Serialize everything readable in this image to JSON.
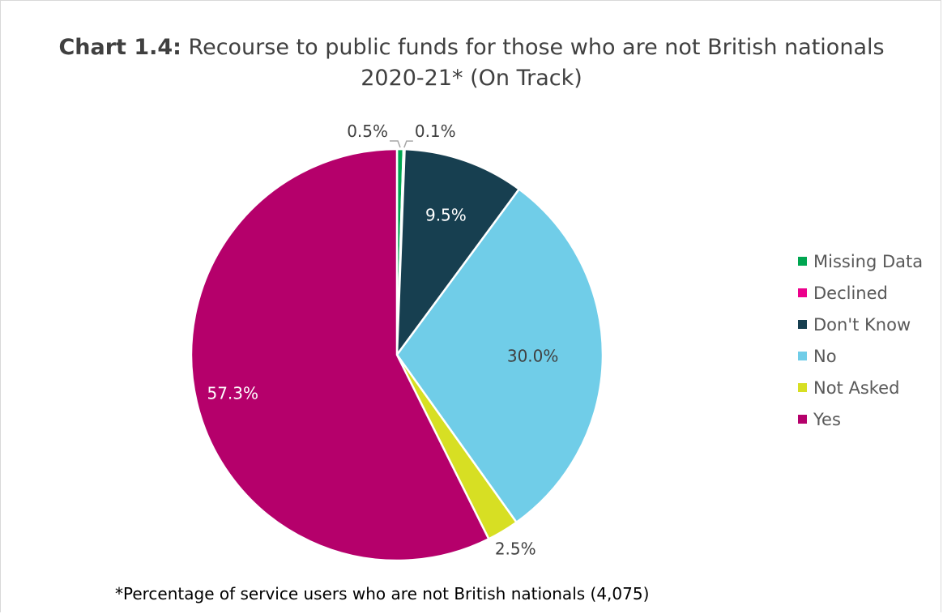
{
  "chart_data": {
    "type": "pie",
    "title_bold": "Chart 1.4:",
    "title_rest": " Recourse to public funds for those who are not British nationals 2020-21* (On Track)",
    "slices": [
      {
        "name": "Missing Data",
        "value": 0.5,
        "label": "0.5%",
        "color": "#00a651"
      },
      {
        "name": "Declined",
        "value": 0.1,
        "label": "0.1%",
        "color": "#ec008c"
      },
      {
        "name": "Don't Know",
        "value": 9.5,
        "label": "9.5%",
        "color": "#173f50"
      },
      {
        "name": "No",
        "value": 30.0,
        "label": "30.0%",
        "color": "#70cde8"
      },
      {
        "name": "Not Asked",
        "value": 2.5,
        "label": "2.5%",
        "color": "#d7df23"
      },
      {
        "name": "Yes",
        "value": 57.3,
        "label": "57.3%",
        "color": "#b5006b"
      }
    ],
    "legend_position": "right",
    "footnote": "*Percentage of service users who are not British nationals (4,075)"
  }
}
